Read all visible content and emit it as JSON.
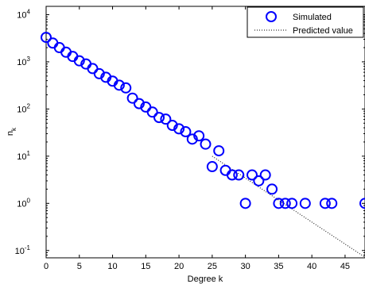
{
  "chart_data": {
    "type": "scatter",
    "title": "",
    "xlabel": "Degree k",
    "ylabel": "n",
    "ylabel_subscript": "k",
    "xlim": [
      0,
      48
    ],
    "ylim": [
      0.07,
      15000
    ],
    "yscale": "log",
    "grid": false,
    "legend_position": "top-right",
    "x_ticks": [
      0,
      5,
      10,
      15,
      20,
      25,
      30,
      35,
      40,
      45
    ],
    "x_tick_labels": [
      "0",
      "5",
      "10",
      "15",
      "20",
      "25",
      "30",
      "35",
      "40",
      "45"
    ],
    "y_ticks": [
      0.1,
      1,
      10,
      100,
      1000,
      10000
    ],
    "y_tick_base_labels": [
      "10",
      "10",
      "10",
      "10",
      "10",
      "10"
    ],
    "y_tick_exponent_labels": [
      "-1",
      "0",
      "1",
      "2",
      "3",
      "4"
    ],
    "series": [
      {
        "name": "Simulated",
        "marker": "circle",
        "color": "#0000ff",
        "x": [
          0,
          1,
          2,
          3,
          4,
          5,
          6,
          7,
          8,
          9,
          10,
          11,
          12,
          13,
          14,
          15,
          16,
          17,
          18,
          19,
          20,
          21,
          22,
          23,
          24,
          25,
          26,
          27,
          28,
          29,
          30,
          31,
          32,
          33,
          34,
          35,
          36,
          37,
          39,
          42,
          43,
          48
        ],
        "y": [
          3300,
          2500,
          2000,
          1600,
          1300,
          1050,
          900,
          720,
          560,
          470,
          390,
          320,
          280,
          170,
          130,
          110,
          86,
          66,
          61,
          45,
          38,
          33,
          23,
          27,
          18,
          6,
          13,
          5,
          4,
          4,
          1,
          4,
          3,
          4,
          2,
          1,
          1,
          1,
          1,
          1,
          1,
          1
        ]
      },
      {
        "name": "Predicted value",
        "line_style": "dotted",
        "color": "#000000",
        "x": [
          25,
          48
        ],
        "y": [
          10,
          0.072
        ]
      }
    ]
  }
}
